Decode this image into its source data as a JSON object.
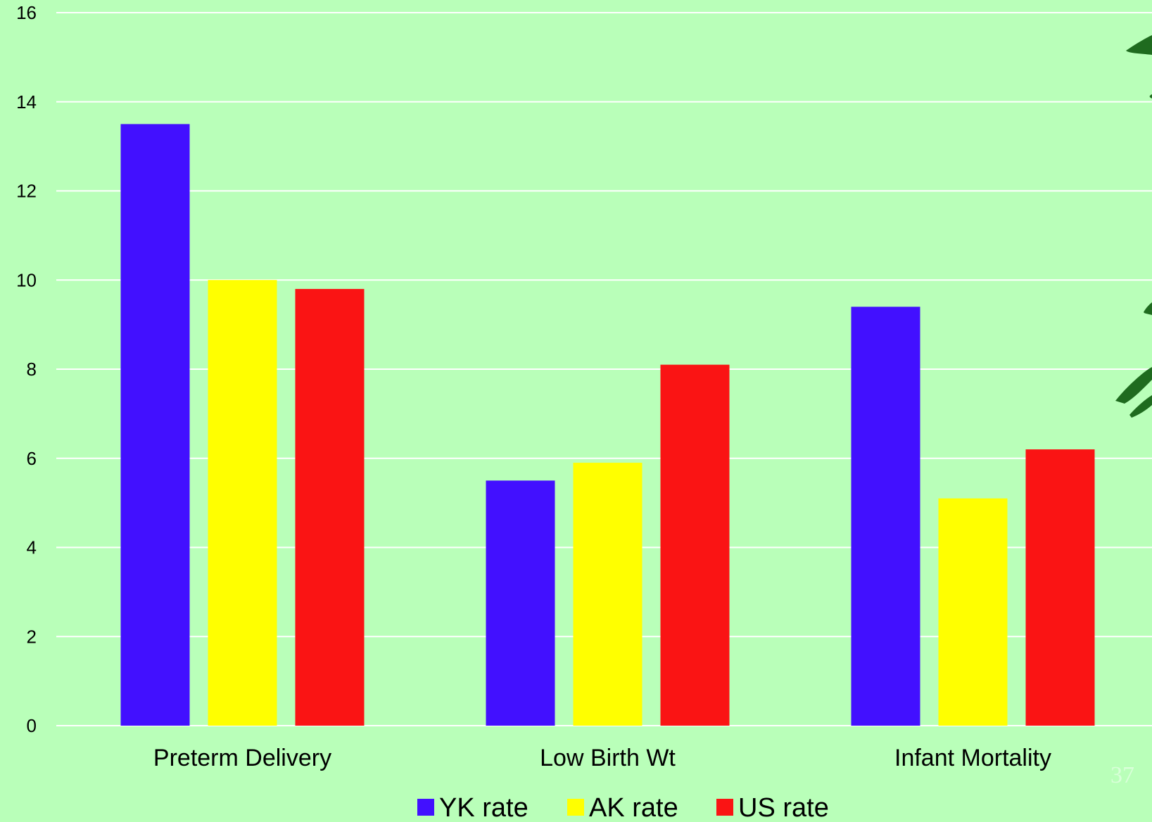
{
  "chart_data": {
    "type": "bar",
    "title": "",
    "xlabel": "",
    "ylabel": "",
    "categories": [
      "Preterm Delivery",
      "Low Birth Wt",
      "Infant Mortality"
    ],
    "series": [
      {
        "name": "YK rate",
        "color": "#4210ff",
        "values": [
          13.5,
          5.5,
          9.4
        ]
      },
      {
        "name": "AK rate",
        "color": "#ffff00",
        "values": [
          10.0,
          5.9,
          5.1
        ]
      },
      {
        "name": "US rate",
        "color": "#fa1414",
        "values": [
          9.8,
          8.1,
          6.2
        ]
      }
    ],
    "ylim": [
      0,
      16
    ],
    "yticks": [
      "0",
      "2",
      "4",
      "6",
      "8",
      "10",
      "12",
      "14",
      "16"
    ],
    "grid": true,
    "legend_position": "bottom-center"
  },
  "slide": {
    "page_number": "37"
  },
  "colors": {
    "background": "#b9ffb9",
    "gridline": "#ffffff",
    "decoration": "#1f6b1f"
  },
  "decoration": {
    "icon": "bamboo-leaves-icon"
  }
}
